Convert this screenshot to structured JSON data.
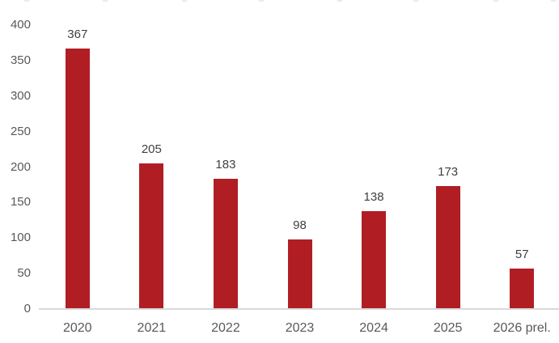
{
  "chart_data": {
    "type": "bar",
    "categories": [
      "2020",
      "2021",
      "2022",
      "2023",
      "2024",
      "2025",
      "2026 prel."
    ],
    "values": [
      367,
      205,
      183,
      98,
      138,
      173,
      57
    ],
    "data_labels": [
      "367",
      "205",
      "183",
      "98",
      "138",
      "173",
      "57"
    ],
    "y_tick_labels": [
      "0",
      "50",
      "100",
      "150",
      "200",
      "250",
      "300",
      "350",
      "400"
    ],
    "y_ticks": [
      0,
      50,
      100,
      150,
      200,
      250,
      300,
      350,
      400
    ],
    "ylim": [
      0,
      400
    ],
    "title": "",
    "xlabel": "",
    "ylabel": "",
    "grid": false,
    "legend": false,
    "colors": {
      "bar": "#B01E24",
      "axis_line": "#D9D9D9",
      "tick_label": "#595959",
      "data_label": "#3F3F3F",
      "background": "#FFFFFF"
    }
  }
}
